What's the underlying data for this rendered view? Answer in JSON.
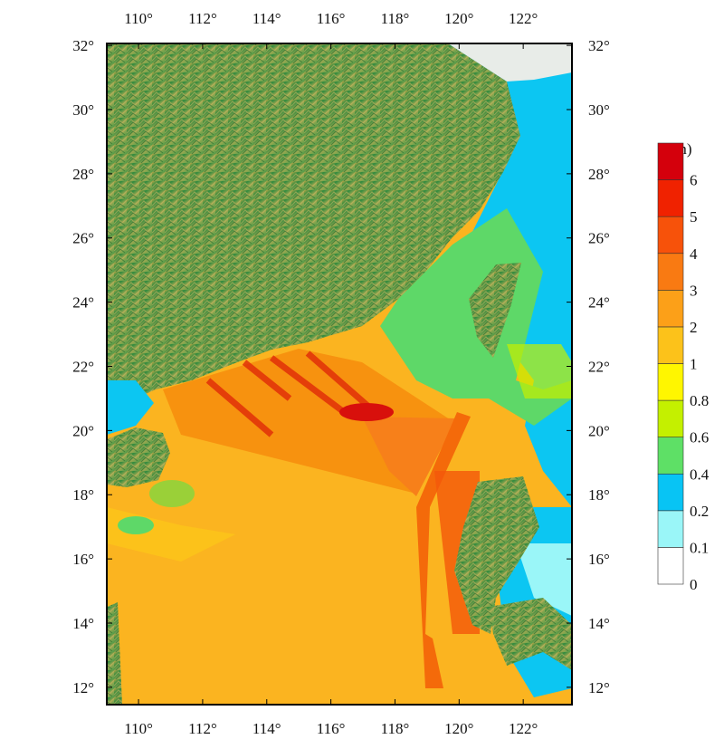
{
  "map": {
    "xlim": [
      109.01,
      123.52
    ],
    "ylim": [
      11.46,
      32.06
    ],
    "xticks": [
      {
        "value": 110,
        "label": "110°"
      },
      {
        "value": 112,
        "label": "112°"
      },
      {
        "value": 114,
        "label": "114°"
      },
      {
        "value": 116,
        "label": "116°"
      },
      {
        "value": 118,
        "label": "118°"
      },
      {
        "value": 120,
        "label": "120°"
      },
      {
        "value": 122,
        "label": "122°"
      }
    ],
    "yticks": [
      {
        "value": 12,
        "label": "12°"
      },
      {
        "value": 14,
        "label": "14°"
      },
      {
        "value": 16,
        "label": "16°"
      },
      {
        "value": 18,
        "label": "18°"
      },
      {
        "value": 20,
        "label": "20°"
      },
      {
        "value": 22,
        "label": "22°"
      },
      {
        "value": 24,
        "label": "24°"
      },
      {
        "value": 26,
        "label": "26°"
      },
      {
        "value": 28,
        "label": "28°"
      },
      {
        "value": 30,
        "label": "30°"
      },
      {
        "value": 32,
        "label": "32°"
      }
    ],
    "colorbar": {
      "unit": "(m)",
      "levels": [
        0,
        0.1,
        0.2,
        0.4,
        0.6,
        0.8,
        1,
        2,
        3,
        4,
        5,
        6
      ],
      "colors": [
        "#ffffff",
        "#9af6f8",
        "#08c4f4",
        "#5ee066",
        "#c4f000",
        "#fff600",
        "#fcc21a",
        "#fca018",
        "#f97a12",
        "#f7520a",
        "#f02200",
        "#d4000c"
      ]
    }
  }
}
